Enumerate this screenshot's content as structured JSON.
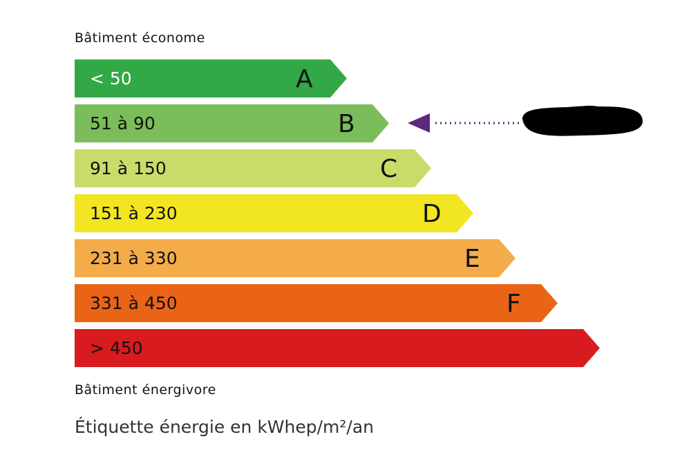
{
  "top_caption": "Bâtiment économe",
  "bottom_caption": "Bâtiment énergivore",
  "footer": "Étiquette énergie en kWhep/m²/an",
  "classes": [
    {
      "letter": "A",
      "range": "< 50",
      "color": "#33a846",
      "text_color": "#ffffff"
    },
    {
      "letter": "B",
      "range": "51 à 90",
      "color": "#7bbd5a",
      "text_color": "#111111"
    },
    {
      "letter": "C",
      "range": "91 à 150",
      "color": "#cbdb6a",
      "text_color": "#111111"
    },
    {
      "letter": "D",
      "range": "151 à 230",
      "color": "#f2e521",
      "text_color": "#111111"
    },
    {
      "letter": "E",
      "range": "231 à 330",
      "color": "#f4ab4a",
      "text_color": "#111111"
    },
    {
      "letter": "F",
      "range": "331 à 450",
      "color": "#ea6417",
      "text_color": "#111111"
    },
    {
      "letter": "",
      "range": "> 450",
      "color": "#d81b1f",
      "text_color": "#111111"
    }
  ],
  "indicator": {
    "current_class": "B",
    "color": "#5b2a7e",
    "value_redacted": true
  }
}
